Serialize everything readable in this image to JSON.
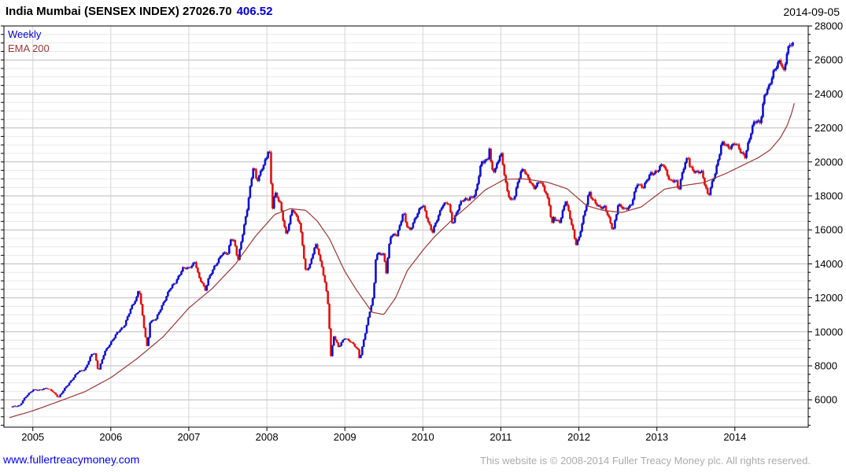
{
  "header": {
    "title_main": "India Mumbai (SENSEX INDEX) 27026.70",
    "title_change": "406.52",
    "date": "2014-09-05"
  },
  "legend": {
    "timeframe": "Weekly",
    "overlay": "EMA 200"
  },
  "footer": {
    "site_link": "www.fullertreacymoney.com",
    "copyright": "This website is © 2008-2014 Fuller Treacy Money plc. All rights reserved."
  },
  "colors": {
    "up": "#1010CE",
    "down": "#E01010",
    "ema": "#993737",
    "title_change": "#0000CC",
    "link": "#0000EE",
    "copyright": "#ABABAB",
    "grid_major": "#BBBBBB",
    "grid_minor": "#E8E8E8",
    "grid_year": "#D4D4D4",
    "axis": "#000000"
  },
  "chart_data": {
    "type": "candlestick",
    "timeframe": "weekly",
    "title": "India Mumbai (SENSEX INDEX)",
    "last_close": 27026.7,
    "change": 406.52,
    "as_of": "2014-09-05",
    "overlay": "EMA 200",
    "grid": "on",
    "legend_position": "top-left",
    "y_axis": {
      "min": 4390,
      "max": 28000,
      "tick_major": 2000,
      "tick_minor": 500,
      "side": "right",
      "labels": [
        6000,
        8000,
        10000,
        12000,
        14000,
        16000,
        18000,
        20000,
        22000,
        24000,
        26000,
        28000
      ]
    },
    "x_axis": {
      "start": 2004.63,
      "end": 2014.94,
      "year_labels": [
        2005,
        2006,
        2007,
        2008,
        2009,
        2010,
        2011,
        2012,
        2013,
        2014
      ]
    },
    "price": [
      [
        2004.72,
        5584
      ],
      [
        2004.83,
        5672
      ],
      [
        2004.92,
        6234
      ],
      [
        2005.0,
        6603
      ],
      [
        2005.08,
        6556
      ],
      [
        2005.17,
        6714
      ],
      [
        2005.25,
        6493
      ],
      [
        2005.33,
        6154
      ],
      [
        2005.42,
        6715
      ],
      [
        2005.5,
        7194
      ],
      [
        2005.58,
        7635
      ],
      [
        2005.67,
        7806
      ],
      [
        2005.75,
        8634
      ],
      [
        2005.79,
        8800
      ],
      [
        2005.84,
        7680
      ],
      [
        2005.92,
        8789
      ],
      [
        2006.0,
        9398
      ],
      [
        2006.08,
        9920
      ],
      [
        2006.17,
        10370
      ],
      [
        2006.25,
        11280
      ],
      [
        2006.33,
        12043
      ],
      [
        2006.36,
        12612
      ],
      [
        2006.42,
        10399
      ],
      [
        2006.47,
        8960
      ],
      [
        2006.5,
        10609
      ],
      [
        2006.58,
        10744
      ],
      [
        2006.67,
        11699
      ],
      [
        2006.75,
        12454
      ],
      [
        2006.83,
        12962
      ],
      [
        2006.92,
        13696
      ],
      [
        2007.0,
        13787
      ],
      [
        2007.08,
        14091
      ],
      [
        2007.13,
        13159
      ],
      [
        2007.17,
        12938
      ],
      [
        2007.21,
        12455
      ],
      [
        2007.25,
        13072
      ],
      [
        2007.33,
        13872
      ],
      [
        2007.42,
        14544
      ],
      [
        2007.5,
        14651
      ],
      [
        2007.54,
        15551
      ],
      [
        2007.58,
        15319
      ],
      [
        2007.63,
        14141
      ],
      [
        2007.67,
        15318
      ],
      [
        2007.75,
        17291
      ],
      [
        2007.83,
        19838
      ],
      [
        2007.87,
        18900
      ],
      [
        2007.92,
        19363
      ],
      [
        2008.0,
        20287
      ],
      [
        2008.03,
        21100
      ],
      [
        2008.07,
        17221
      ],
      [
        2008.1,
        18152
      ],
      [
        2008.17,
        17579
      ],
      [
        2008.25,
        15644
      ],
      [
        2008.33,
        17287
      ],
      [
        2008.42,
        16416
      ],
      [
        2008.5,
        13462
      ],
      [
        2008.58,
        14356
      ],
      [
        2008.62,
        15180
      ],
      [
        2008.67,
        14565
      ],
      [
        2008.75,
        12860
      ],
      [
        2008.79,
        11328
      ],
      [
        2008.82,
        8510
      ],
      [
        2008.86,
        9788
      ],
      [
        2008.92,
        9093
      ],
      [
        2009.0,
        9647
      ],
      [
        2009.08,
        9424
      ],
      [
        2009.17,
        8892
      ],
      [
        2009.19,
        8360
      ],
      [
        2009.25,
        9709
      ],
      [
        2009.33,
        11403
      ],
      [
        2009.37,
        12173
      ],
      [
        2009.39,
        14284
      ],
      [
        2009.42,
        14625
      ],
      [
        2009.5,
        14494
      ],
      [
        2009.53,
        13504
      ],
      [
        2009.58,
        15670
      ],
      [
        2009.67,
        15667
      ],
      [
        2009.75,
        17127
      ],
      [
        2009.79,
        16260
      ],
      [
        2009.83,
        15896
      ],
      [
        2009.92,
        16926
      ],
      [
        2010.0,
        17465
      ],
      [
        2010.08,
        16358
      ],
      [
        2010.12,
        15835
      ],
      [
        2010.17,
        16430
      ],
      [
        2010.25,
        17528
      ],
      [
        2010.33,
        17559
      ],
      [
        2010.38,
        16320
      ],
      [
        2010.42,
        16945
      ],
      [
        2010.5,
        17701
      ],
      [
        2010.58,
        17868
      ],
      [
        2010.67,
        17971
      ],
      [
        2010.75,
        20069
      ],
      [
        2010.83,
        20032
      ],
      [
        2010.85,
        20893
      ],
      [
        2010.88,
        19585
      ],
      [
        2010.92,
        19521
      ],
      [
        2011.0,
        20509
      ],
      [
        2011.08,
        18328
      ],
      [
        2011.13,
        17700
      ],
      [
        2011.17,
        17823
      ],
      [
        2011.25,
        19445
      ],
      [
        2011.29,
        19602
      ],
      [
        2011.33,
        19136
      ],
      [
        2011.42,
        18503
      ],
      [
        2011.5,
        18846
      ],
      [
        2011.58,
        18197
      ],
      [
        2011.63,
        17306
      ],
      [
        2011.65,
        16142
      ],
      [
        2011.67,
        16677
      ],
      [
        2011.75,
        16454
      ],
      [
        2011.83,
        17705
      ],
      [
        2011.92,
        16123
      ],
      [
        2011.96,
        15175
      ],
      [
        2012.0,
        15455
      ],
      [
        2012.08,
        17194
      ],
      [
        2012.13,
        18290
      ],
      [
        2012.17,
        17753
      ],
      [
        2012.25,
        17404
      ],
      [
        2012.33,
        17319
      ],
      [
        2012.42,
        16219
      ],
      [
        2012.44,
        16020
      ],
      [
        2012.5,
        17430
      ],
      [
        2012.58,
        17236
      ],
      [
        2012.67,
        17430
      ],
      [
        2012.75,
        18763
      ],
      [
        2012.83,
        18505
      ],
      [
        2012.92,
        19340
      ],
      [
        2013.0,
        19427
      ],
      [
        2013.08,
        19895
      ],
      [
        2013.17,
        18862
      ],
      [
        2013.25,
        18836
      ],
      [
        2013.28,
        18350
      ],
      [
        2013.33,
        19504
      ],
      [
        2013.4,
        20290
      ],
      [
        2013.42,
        19760
      ],
      [
        2013.5,
        19396
      ],
      [
        2013.58,
        19346
      ],
      [
        2013.62,
        18600
      ],
      [
        2013.66,
        18002
      ],
      [
        2013.7,
        18620
      ],
      [
        2013.75,
        19380
      ],
      [
        2013.83,
        21165
      ],
      [
        2013.92,
        20792
      ],
      [
        2014.0,
        21171
      ],
      [
        2014.08,
        20514
      ],
      [
        2014.13,
        20376
      ],
      [
        2014.17,
        21120
      ],
      [
        2014.25,
        22386
      ],
      [
        2014.33,
        22418
      ],
      [
        2014.38,
        23905
      ],
      [
        2014.42,
        24217
      ],
      [
        2014.5,
        25414
      ],
      [
        2014.58,
        25895
      ],
      [
        2014.63,
        25329
      ],
      [
        2014.67,
        26638
      ],
      [
        2014.75,
        27027
      ]
    ],
    "ema200": [
      [
        2004.7,
        4950
      ],
      [
        2005.0,
        5350
      ],
      [
        2005.33,
        5900
      ],
      [
        2005.67,
        6480
      ],
      [
        2006.0,
        7300
      ],
      [
        2006.33,
        8400
      ],
      [
        2006.67,
        9700
      ],
      [
        2007.0,
        11400
      ],
      [
        2007.3,
        12550
      ],
      [
        2007.6,
        14000
      ],
      [
        2007.85,
        15600
      ],
      [
        2008.1,
        16900
      ],
      [
        2008.3,
        17250
      ],
      [
        2008.5,
        17150
      ],
      [
        2008.65,
        16500
      ],
      [
        2008.8,
        15500
      ],
      [
        2009.0,
        13550
      ],
      [
        2009.15,
        12450
      ],
      [
        2009.35,
        11150
      ],
      [
        2009.5,
        11020
      ],
      [
        2009.65,
        12000
      ],
      [
        2009.8,
        13600
      ],
      [
        2010.0,
        14800
      ],
      [
        2010.15,
        15600
      ],
      [
        2010.4,
        16700
      ],
      [
        2010.6,
        17500
      ],
      [
        2010.8,
        18350
      ],
      [
        2011.05,
        18980
      ],
      [
        2011.3,
        19000
      ],
      [
        2011.6,
        18800
      ],
      [
        2011.85,
        18420
      ],
      [
        2012.1,
        17420
      ],
      [
        2012.3,
        17160
      ],
      [
        2012.55,
        17020
      ],
      [
        2012.8,
        17350
      ],
      [
        2013.1,
        18400
      ],
      [
        2013.4,
        18650
      ],
      [
        2013.6,
        18780
      ],
      [
        2013.9,
        19350
      ],
      [
        2014.1,
        19800
      ],
      [
        2014.3,
        20250
      ],
      [
        2014.45,
        20700
      ],
      [
        2014.58,
        21400
      ],
      [
        2014.67,
        22140
      ],
      [
        2014.73,
        22900
      ],
      [
        2014.78,
        23780
      ]
    ]
  }
}
